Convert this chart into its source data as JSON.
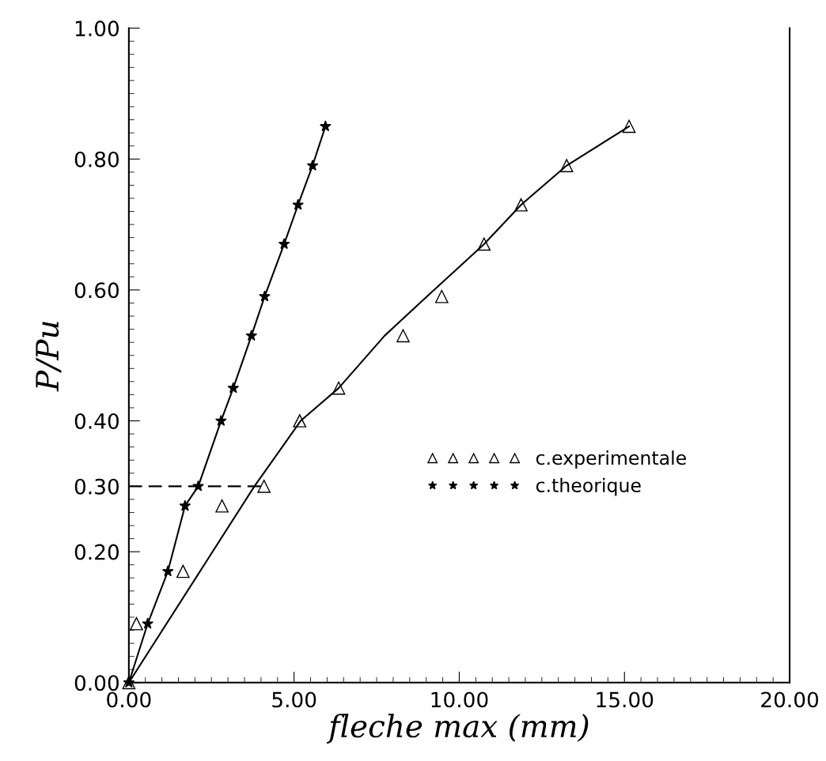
{
  "chart_data": {
    "type": "scatter",
    "xlabel": "fleche max (mm)",
    "ylabel": "P/Pu",
    "xlim": [
      0,
      20
    ],
    "ylim": [
      0,
      1
    ],
    "xticks": [
      {
        "value": 0,
        "label": "0.00"
      },
      {
        "value": 5,
        "label": "5.00"
      },
      {
        "value": 10,
        "label": "10.00"
      },
      {
        "value": 15,
        "label": "15.00"
      },
      {
        "value": 20,
        "label": "20.00"
      }
    ],
    "yticks": [
      {
        "value": 0,
        "label": "0.00"
      },
      {
        "value": 0.2,
        "label": "0.20"
      },
      {
        "value": 0.3,
        "label": "0.30"
      },
      {
        "value": 0.4,
        "label": "0.40"
      },
      {
        "value": 0.6,
        "label": "0.60"
      },
      {
        "value": 0.8,
        "label": "0.80"
      },
      {
        "value": 1,
        "label": "1.00"
      }
    ],
    "grid": false,
    "legend": "right",
    "series": [
      {
        "name": "c.experimentale",
        "marker": "triangle",
        "color": "#000000",
        "x": [
          0,
          0.23,
          1.64,
          2.82,
          4.09,
          5.17,
          6.35,
          8.3,
          9.47,
          10.75,
          11.87,
          13.25,
          15.14
        ],
        "values": [
          0,
          0.09,
          0.17,
          0.27,
          0.3,
          0.4,
          0.45,
          0.53,
          0.59,
          0.67,
          0.73,
          0.79,
          0.85
        ]
      },
      {
        "name": "c.theorique",
        "type": "line",
        "marker": "star",
        "line_style": "solid",
        "color": "#000000",
        "x": [
          0,
          0.57,
          1.18,
          1.7,
          2.1,
          2.79,
          3.16,
          3.71,
          4.11,
          4.7,
          5.12,
          5.56,
          5.95
        ],
        "values": [
          0,
          0.09,
          0.17,
          0.27,
          0.3,
          0.4,
          0.45,
          0.53,
          0.59,
          0.67,
          0.73,
          0.79,
          0.85
        ]
      },
      {
        "type": "line",
        "marker": "none",
        "line_style": "solid",
        "color": "#000000",
        "x": [
          0,
          3.8,
          5.2,
          6.35,
          7.74,
          9.02,
          10.75,
          11.87,
          13.25,
          15.14
        ],
        "values": [
          0,
          0.3,
          0.4,
          0.45,
          0.53,
          0.59,
          0.67,
          0.73,
          0.79,
          0.85
        ]
      },
      {
        "type": "line",
        "marker": "none",
        "line_style": "dashed",
        "color": "#000000",
        "x": [
          0,
          4.0
        ],
        "values": [
          0.3,
          0.3
        ]
      }
    ]
  }
}
